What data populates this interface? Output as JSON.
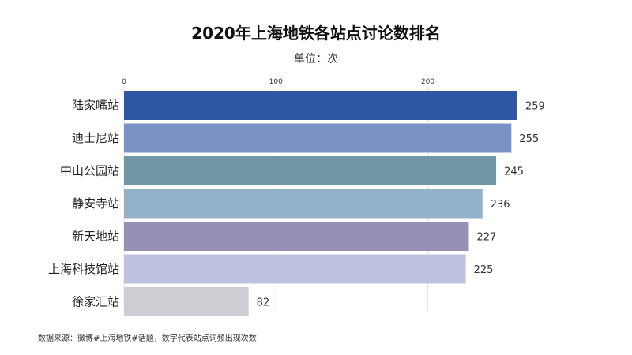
{
  "title": "2020年上海地铁各站点讨论数排名",
  "subtitle": "单位：次",
  "source": "数据来源：微博#上海地铁#话题，数字代表站点词频出现次数",
  "chart_data": {
    "type": "bar",
    "orientation": "horizontal",
    "categories": [
      "陆家嘴站",
      "迪士尼站",
      "中山公园站",
      "静安寺站",
      "新天地站",
      "上海科技馆站",
      "徐家汇站"
    ],
    "values": [
      259,
      255,
      245,
      236,
      227,
      225,
      82
    ],
    "colors": [
      "#2f57a3",
      "#7b92c6",
      "#6f97a6",
      "#93b1c9",
      "#9590b6",
      "#bfc1e0",
      "#cdced3"
    ],
    "xticks": [
      0,
      100,
      200
    ],
    "xlim": [
      0,
      259
    ],
    "axis_position": "top",
    "grid": true,
    "legend": "none"
  }
}
